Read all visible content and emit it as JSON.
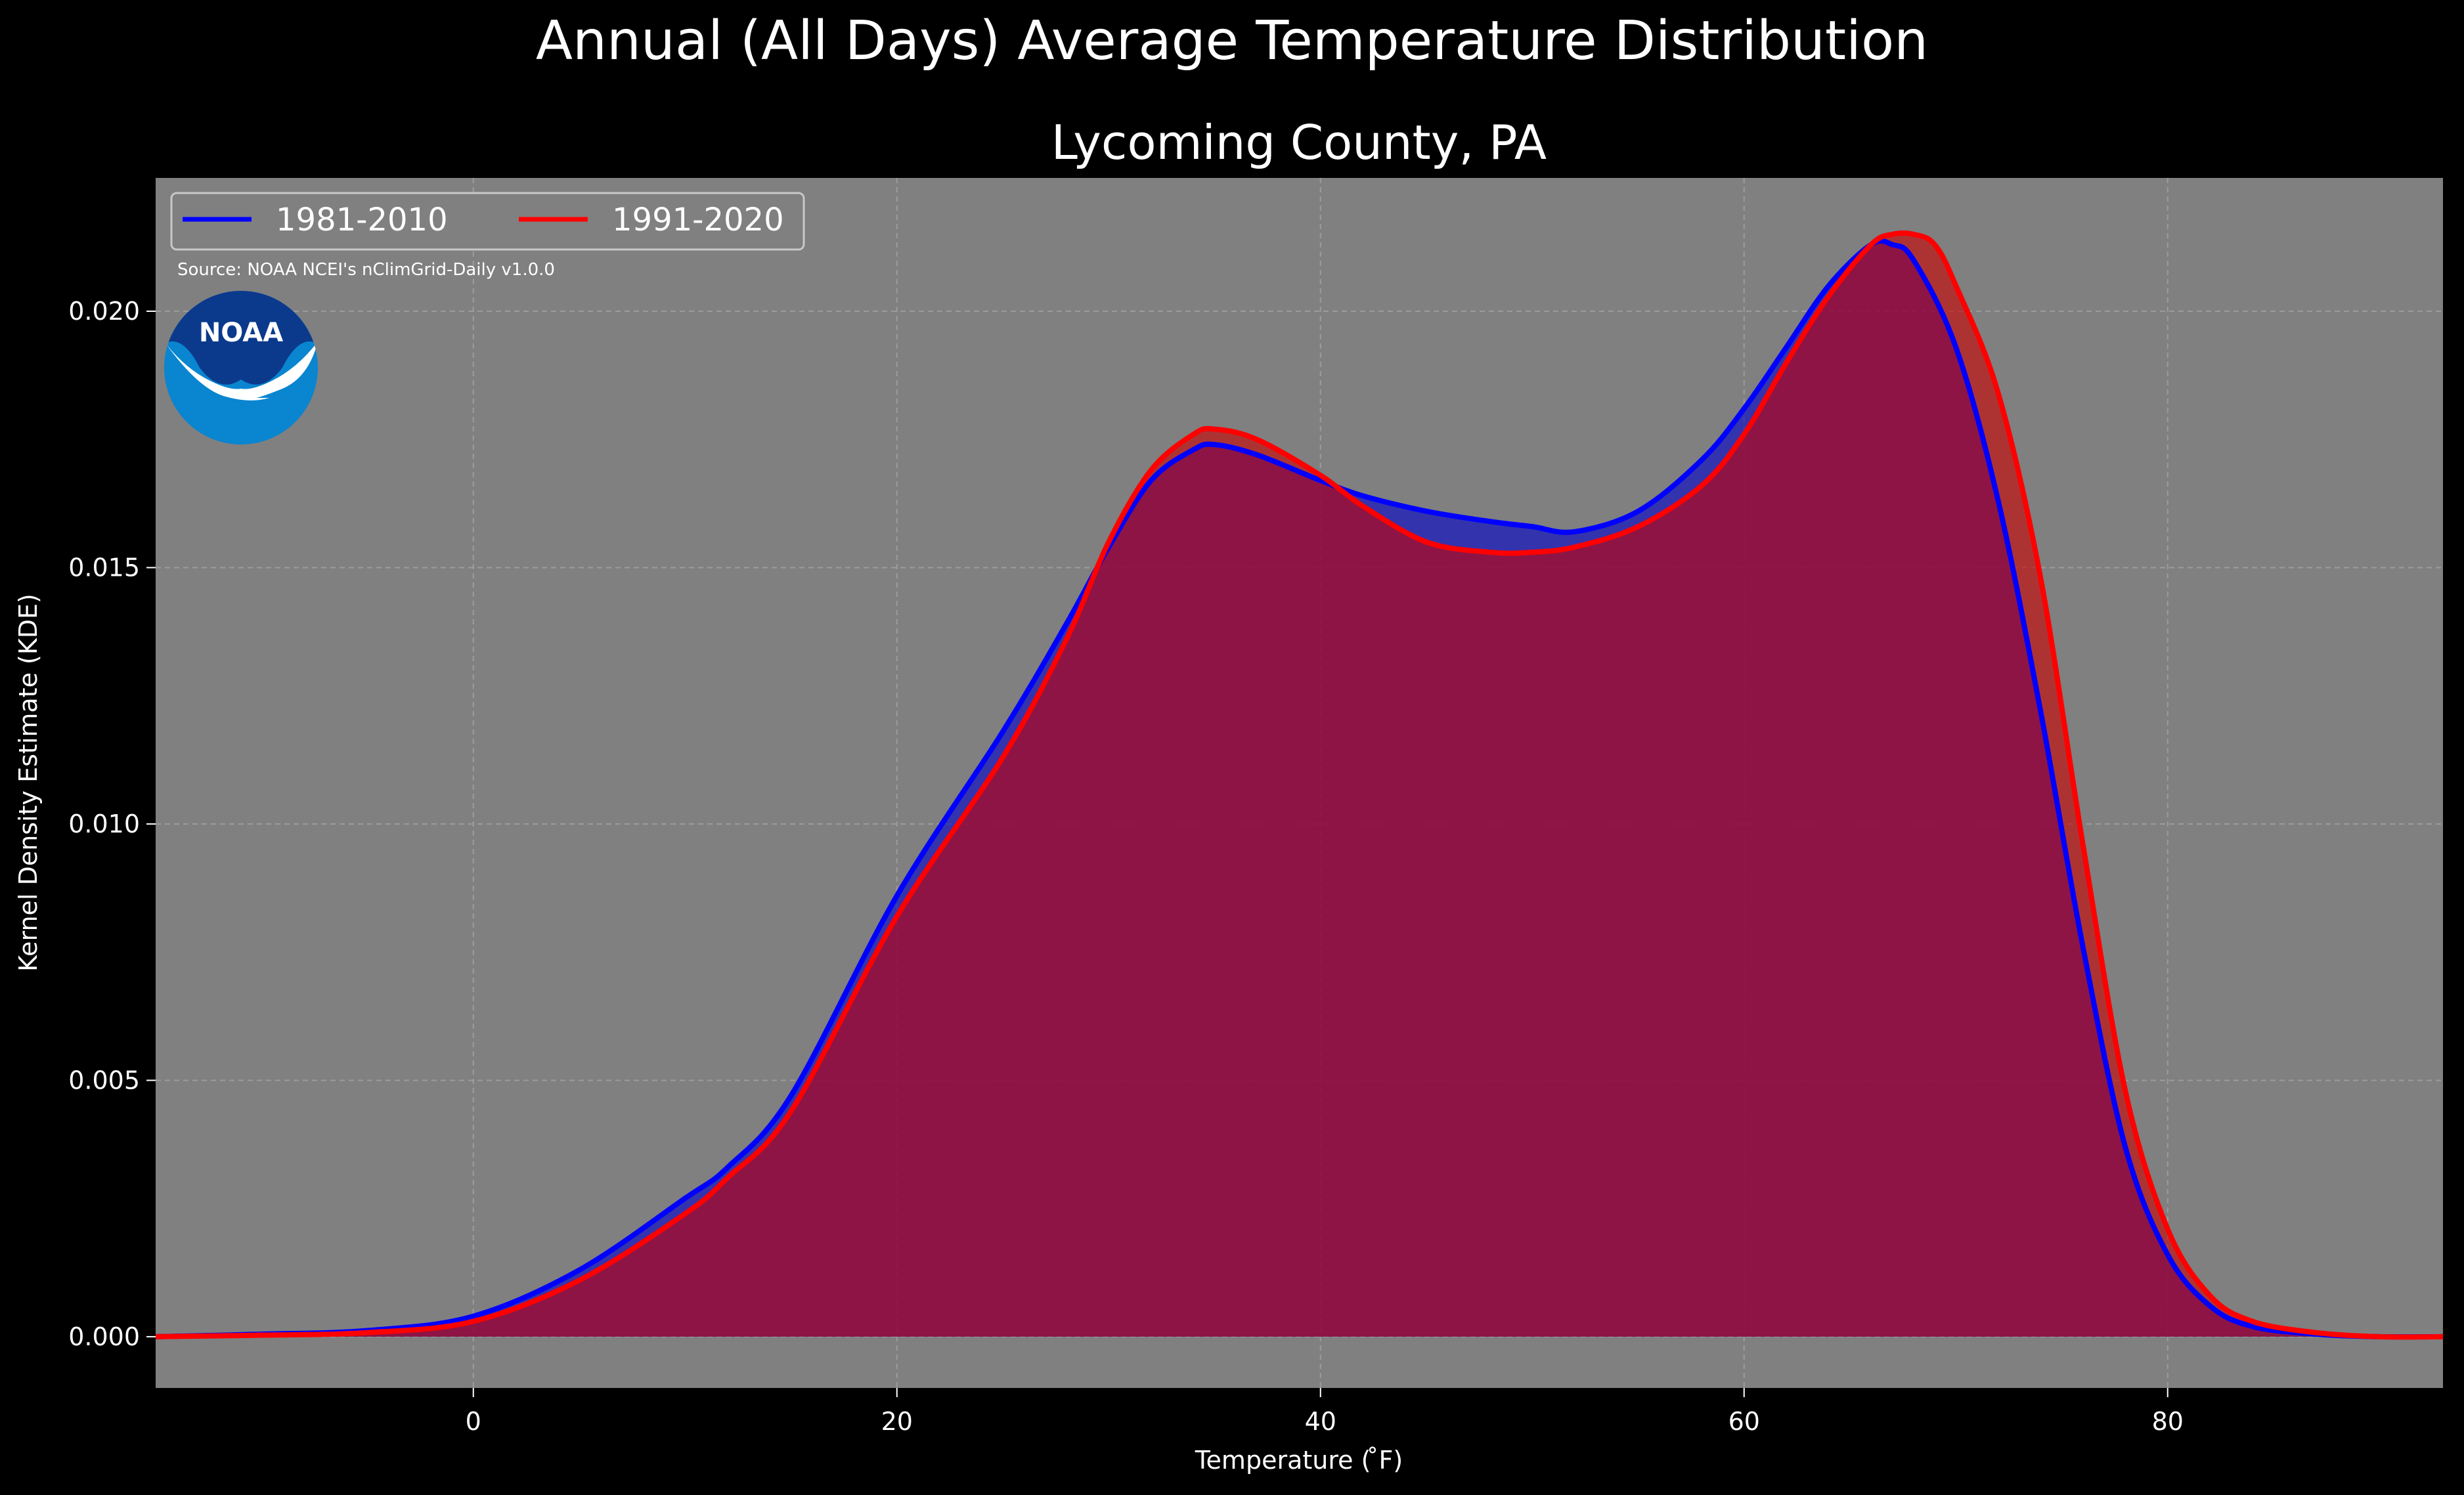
{
  "figure": {
    "suptitle": "Annual (All Days) Average Temperature Distribution",
    "background": "#000000",
    "plot_background": "#808080"
  },
  "source_note": "Source: NOAA NCEI's nClimGrid-Daily v1.0.0",
  "logo": {
    "text": "NOAA",
    "icon": "noaa-logo-icon",
    "dark_color": "#0b3a8c",
    "light_color": "#0a85d0"
  },
  "chart_data": {
    "type": "area",
    "title": "Lycoming County, PA",
    "xlabel": "Temperature ($^\\circ$F)",
    "xlabel_display": "Temperature ( ̊F)",
    "ylabel": "Kernel Density Estimate (KDE)",
    "xlim": [
      -15,
      93
    ],
    "ylim": [
      -0.001,
      0.0226
    ],
    "xticks": [
      0,
      20,
      40,
      60,
      80
    ],
    "yticks": [
      0.0,
      0.005,
      0.01,
      0.015,
      0.02
    ],
    "ytick_labels": [
      "0.000",
      "0.005",
      "0.010",
      "0.015",
      "0.020"
    ],
    "grid": true,
    "legend": {
      "placement": "upper-left",
      "ncol": 2
    },
    "series": [
      {
        "name": "1981-2010",
        "color": "#0000ff",
        "fill_color": "#0000cc",
        "points": [
          [
            -15,
            0.0
          ],
          [
            -10,
            5e-05
          ],
          [
            -5,
            0.00012
          ],
          [
            0,
            0.0004
          ],
          [
            5,
            0.0013
          ],
          [
            10,
            0.0027
          ],
          [
            12,
            0.0033
          ],
          [
            15,
            0.0047
          ],
          [
            20,
            0.0086
          ],
          [
            25,
            0.0118
          ],
          [
            28,
            0.0139
          ],
          [
            30,
            0.0154
          ],
          [
            32,
            0.0167
          ],
          [
            34,
            0.0173
          ],
          [
            35,
            0.0174
          ],
          [
            37,
            0.0172
          ],
          [
            40,
            0.0167
          ],
          [
            42,
            0.0164
          ],
          [
            45,
            0.0161
          ],
          [
            48,
            0.0159
          ],
          [
            50,
            0.0158
          ],
          [
            52,
            0.0157
          ],
          [
            55,
            0.0161
          ],
          [
            58,
            0.0171
          ],
          [
            60,
            0.0181
          ],
          [
            62,
            0.0193
          ],
          [
            64,
            0.0205
          ],
          [
            66,
            0.0213
          ],
          [
            67,
            0.0213
          ],
          [
            68,
            0.021
          ],
          [
            70,
            0.0193
          ],
          [
            72,
            0.0163
          ],
          [
            74,
            0.0122
          ],
          [
            76,
            0.0076
          ],
          [
            78,
            0.0037
          ],
          [
            80,
            0.0016
          ],
          [
            82,
            0.0006
          ],
          [
            84,
            0.0002
          ],
          [
            87,
            5e-05
          ],
          [
            90,
            0.0
          ],
          [
            93,
            0.0
          ]
        ]
      },
      {
        "name": "1991-2020",
        "color": "#ff0000",
        "fill_color": "#cc0000",
        "points": [
          [
            -15,
            0.0
          ],
          [
            -10,
            3e-05
          ],
          [
            -5,
            8e-05
          ],
          [
            0,
            0.0003
          ],
          [
            5,
            0.0011
          ],
          [
            10,
            0.0024
          ],
          [
            12,
            0.0031
          ],
          [
            15,
            0.0044
          ],
          [
            20,
            0.0082
          ],
          [
            25,
            0.0113
          ],
          [
            28,
            0.0136
          ],
          [
            30,
            0.0155
          ],
          [
            32,
            0.0169
          ],
          [
            34,
            0.0176
          ],
          [
            35,
            0.0177
          ],
          [
            37,
            0.0175
          ],
          [
            40,
            0.0168
          ],
          [
            42,
            0.0162
          ],
          [
            45,
            0.0155
          ],
          [
            48,
            0.0153
          ],
          [
            50,
            0.0153
          ],
          [
            52,
            0.0154
          ],
          [
            55,
            0.0158
          ],
          [
            58,
            0.0166
          ],
          [
            60,
            0.0176
          ],
          [
            62,
            0.019
          ],
          [
            64,
            0.0203
          ],
          [
            66,
            0.0213
          ],
          [
            67,
            0.0215
          ],
          [
            68,
            0.0215
          ],
          [
            69,
            0.0213
          ],
          [
            70,
            0.0205
          ],
          [
            72,
            0.0184
          ],
          [
            74,
            0.0148
          ],
          [
            76,
            0.0096
          ],
          [
            78,
            0.0048
          ],
          [
            80,
            0.0021
          ],
          [
            82,
            0.0008
          ],
          [
            84,
            0.0003
          ],
          [
            87,
            8e-05
          ],
          [
            90,
            0.0
          ],
          [
            93,
            0.0
          ]
        ]
      }
    ]
  }
}
